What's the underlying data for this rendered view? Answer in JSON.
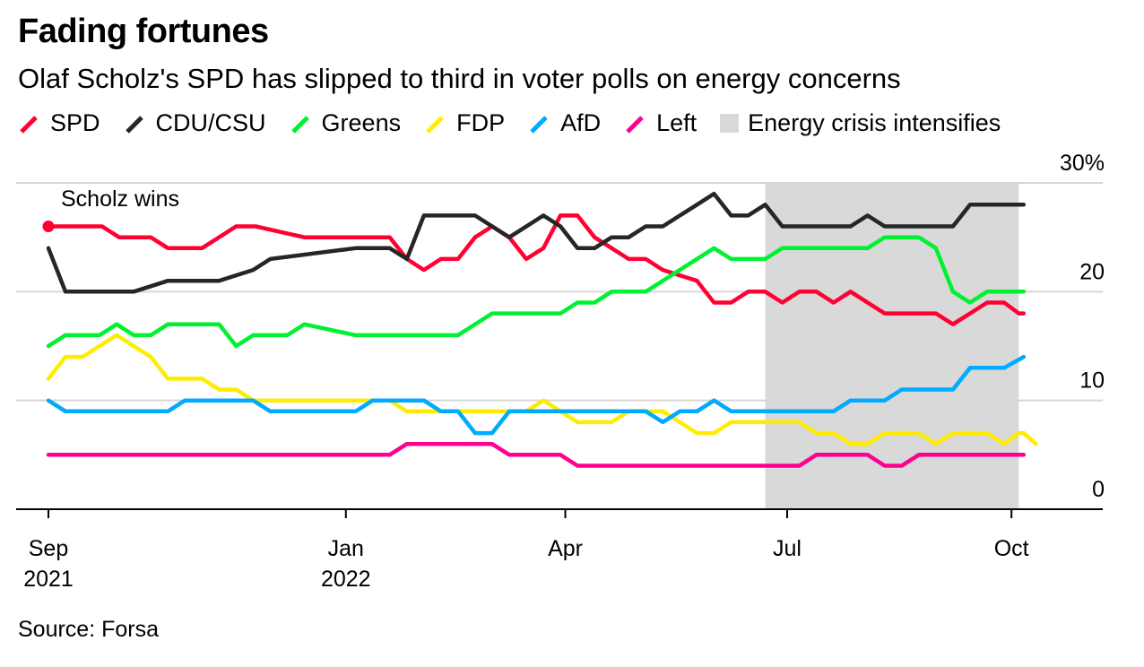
{
  "title": "Fading fortunes",
  "subtitle": "Olaf Scholz's SPD has slipped to third in voter polls on energy concerns",
  "source": "Source: Forsa",
  "chart_data": {
    "type": "line",
    "ylim": [
      0,
      30
    ],
    "y_ticks": [
      0,
      10,
      20,
      30
    ],
    "y_tick_labels": [
      "0",
      "10",
      "20",
      "30%"
    ],
    "x_range": [
      "2021-09-01",
      "2022-10-31"
    ],
    "x_ticks": [
      {
        "date": "2021-09-01",
        "label": "Sep",
        "sublabel": "2021"
      },
      {
        "date": "2022-01-01",
        "label": "Jan",
        "sublabel": "2022"
      },
      {
        "date": "2022-04-01",
        "label": "Apr",
        "sublabel": ""
      },
      {
        "date": "2022-07-01",
        "label": "Jul",
        "sublabel": ""
      },
      {
        "date": "2022-10-01",
        "label": "Oct",
        "sublabel": ""
      }
    ],
    "grid": true,
    "shaded_region": {
      "label": "Energy crisis intensifies",
      "start": "2022-06-22",
      "end": "2022-10-04",
      "color": "#d9d9d9"
    },
    "annotation": {
      "text": "Scholz wins",
      "date": "2021-09-01",
      "value": 26
    },
    "series": [
      {
        "name": "SPD",
        "color": "#ff0030",
        "points": [
          [
            "2021-09-01",
            26
          ],
          [
            "2021-09-15",
            26
          ],
          [
            "2021-09-23",
            26
          ],
          [
            "2021-09-30",
            25
          ],
          [
            "2021-10-13",
            25
          ],
          [
            "2021-10-20",
            24
          ],
          [
            "2021-11-03",
            24
          ],
          [
            "2021-11-17",
            26
          ],
          [
            "2021-11-25",
            26
          ],
          [
            "2021-12-15",
            25
          ],
          [
            "2022-01-19",
            25
          ],
          [
            "2022-01-26",
            23
          ],
          [
            "2022-02-02",
            22
          ],
          [
            "2022-02-09",
            23
          ],
          [
            "2022-02-16",
            23
          ],
          [
            "2022-02-23",
            25
          ],
          [
            "2022-03-02",
            26
          ],
          [
            "2022-03-09",
            25
          ],
          [
            "2022-03-16",
            23
          ],
          [
            "2022-03-23",
            24
          ],
          [
            "2022-03-30",
            27
          ],
          [
            "2022-04-06",
            27
          ],
          [
            "2022-04-13",
            25
          ],
          [
            "2022-04-20",
            24
          ],
          [
            "2022-04-27",
            23
          ],
          [
            "2022-05-04",
            23
          ],
          [
            "2022-05-11",
            22
          ],
          [
            "2022-05-25",
            21
          ],
          [
            "2022-06-01",
            19
          ],
          [
            "2022-06-08",
            19
          ],
          [
            "2022-06-15",
            20
          ],
          [
            "2022-06-22",
            20
          ],
          [
            "2022-06-29",
            19
          ],
          [
            "2022-07-06",
            20
          ],
          [
            "2022-07-13",
            20
          ],
          [
            "2022-07-20",
            19
          ],
          [
            "2022-07-27",
            20
          ],
          [
            "2022-08-03",
            19
          ],
          [
            "2022-08-10",
            18
          ],
          [
            "2022-08-31",
            18
          ],
          [
            "2022-09-07",
            17
          ],
          [
            "2022-09-14",
            18
          ],
          [
            "2022-09-21",
            19
          ],
          [
            "2022-09-28",
            19
          ],
          [
            "2022-10-04",
            18
          ],
          [
            "2022-10-06",
            18
          ]
        ]
      },
      {
        "name": "CDU/CSU",
        "color": "#262626",
        "points": [
          [
            "2021-09-01",
            24
          ],
          [
            "2021-09-08",
            20
          ],
          [
            "2021-09-15",
            20
          ],
          [
            "2021-10-06",
            20
          ],
          [
            "2021-10-20",
            21
          ],
          [
            "2021-11-10",
            21
          ],
          [
            "2021-11-24",
            22
          ],
          [
            "2021-12-01",
            23
          ],
          [
            "2022-01-05",
            24
          ],
          [
            "2022-01-19",
            24
          ],
          [
            "2022-01-26",
            23
          ],
          [
            "2022-02-02",
            27
          ],
          [
            "2022-02-23",
            27
          ],
          [
            "2022-03-02",
            26
          ],
          [
            "2022-03-09",
            25
          ],
          [
            "2022-03-23",
            27
          ],
          [
            "2022-03-30",
            26
          ],
          [
            "2022-04-06",
            24
          ],
          [
            "2022-04-13",
            24
          ],
          [
            "2022-04-20",
            25
          ],
          [
            "2022-04-27",
            25
          ],
          [
            "2022-05-04",
            26
          ],
          [
            "2022-05-11",
            26
          ],
          [
            "2022-05-18",
            27
          ],
          [
            "2022-05-25",
            28
          ],
          [
            "2022-06-01",
            29
          ],
          [
            "2022-06-08",
            27
          ],
          [
            "2022-06-15",
            27
          ],
          [
            "2022-06-22",
            28
          ],
          [
            "2022-06-29",
            26
          ],
          [
            "2022-07-06",
            26
          ],
          [
            "2022-07-27",
            26
          ],
          [
            "2022-08-03",
            27
          ],
          [
            "2022-08-10",
            26
          ],
          [
            "2022-08-31",
            26
          ],
          [
            "2022-09-07",
            26
          ],
          [
            "2022-09-14",
            28
          ],
          [
            "2022-10-06",
            28
          ]
        ]
      },
      {
        "name": "Greens",
        "color": "#00f032",
        "points": [
          [
            "2021-09-01",
            15
          ],
          [
            "2021-09-08",
            16
          ],
          [
            "2021-09-22",
            16
          ],
          [
            "2021-09-29",
            17
          ],
          [
            "2021-10-06",
            16
          ],
          [
            "2021-10-13",
            16
          ],
          [
            "2021-10-20",
            17
          ],
          [
            "2021-11-10",
            17
          ],
          [
            "2021-11-17",
            15
          ],
          [
            "2021-11-24",
            16
          ],
          [
            "2021-12-08",
            16
          ],
          [
            "2021-12-15",
            17
          ],
          [
            "2022-01-05",
            16
          ],
          [
            "2022-01-19",
            16
          ],
          [
            "2022-02-02",
            16
          ],
          [
            "2022-02-16",
            16
          ],
          [
            "2022-03-02",
            18
          ],
          [
            "2022-03-30",
            18
          ],
          [
            "2022-04-06",
            19
          ],
          [
            "2022-04-13",
            19
          ],
          [
            "2022-04-20",
            20
          ],
          [
            "2022-05-04",
            20
          ],
          [
            "2022-05-11",
            21
          ],
          [
            "2022-06-01",
            24
          ],
          [
            "2022-06-08",
            23
          ],
          [
            "2022-06-22",
            23
          ],
          [
            "2022-06-29",
            24
          ],
          [
            "2022-08-03",
            24
          ],
          [
            "2022-08-10",
            25
          ],
          [
            "2022-08-24",
            25
          ],
          [
            "2022-08-31",
            24
          ],
          [
            "2022-09-07",
            20
          ],
          [
            "2022-09-14",
            19
          ],
          [
            "2022-09-21",
            20
          ],
          [
            "2022-10-06",
            20
          ]
        ]
      },
      {
        "name": "FDP",
        "color": "#ffec00",
        "points": [
          [
            "2021-09-01",
            12
          ],
          [
            "2021-09-08",
            14
          ],
          [
            "2021-09-15",
            14
          ],
          [
            "2021-09-22",
            15
          ],
          [
            "2021-09-29",
            16
          ],
          [
            "2021-10-06",
            15
          ],
          [
            "2021-10-13",
            14
          ],
          [
            "2021-10-20",
            12
          ],
          [
            "2021-11-03",
            12
          ],
          [
            "2021-11-10",
            11
          ],
          [
            "2021-11-17",
            11
          ],
          [
            "2021-11-24",
            10
          ],
          [
            "2022-01-12",
            10
          ],
          [
            "2022-01-19",
            10
          ],
          [
            "2022-01-26",
            9
          ],
          [
            "2022-02-02",
            9
          ],
          [
            "2022-03-02",
            9
          ],
          [
            "2022-03-09",
            9
          ],
          [
            "2022-03-16",
            9
          ],
          [
            "2022-03-23",
            10
          ],
          [
            "2022-03-30",
            9
          ],
          [
            "2022-04-06",
            8
          ],
          [
            "2022-04-20",
            8
          ],
          [
            "2022-04-27",
            9
          ],
          [
            "2022-05-04",
            9
          ],
          [
            "2022-05-11",
            9
          ],
          [
            "2022-05-18",
            8
          ],
          [
            "2022-05-25",
            7
          ],
          [
            "2022-06-01",
            7
          ],
          [
            "2022-06-08",
            8
          ],
          [
            "2022-06-15",
            8
          ],
          [
            "2022-06-29",
            8
          ],
          [
            "2022-07-06",
            8
          ],
          [
            "2022-07-13",
            7
          ],
          [
            "2022-07-20",
            7
          ],
          [
            "2022-07-27",
            6
          ],
          [
            "2022-08-03",
            6
          ],
          [
            "2022-08-10",
            7
          ],
          [
            "2022-08-24",
            7
          ],
          [
            "2022-08-31",
            6
          ],
          [
            "2022-09-07",
            7
          ],
          [
            "2022-09-14",
            7
          ],
          [
            "2022-09-21",
            7
          ],
          [
            "2022-09-28",
            6
          ],
          [
            "2022-10-04",
            7
          ],
          [
            "2022-10-06",
            7
          ],
          [
            "2022-10-11",
            6
          ]
        ]
      },
      {
        "name": "AfD",
        "color": "#00aaff",
        "points": [
          [
            "2021-09-01",
            10
          ],
          [
            "2021-09-08",
            9
          ],
          [
            "2021-10-20",
            9
          ],
          [
            "2021-10-27",
            10
          ],
          [
            "2021-11-24",
            10
          ],
          [
            "2021-12-01",
            9
          ],
          [
            "2021-12-22",
            9
          ],
          [
            "2022-01-05",
            9
          ],
          [
            "2022-01-12",
            10
          ],
          [
            "2022-01-19",
            10
          ],
          [
            "2022-02-02",
            10
          ],
          [
            "2022-02-09",
            9
          ],
          [
            "2022-02-16",
            9
          ],
          [
            "2022-02-23",
            7
          ],
          [
            "2022-03-02",
            7
          ],
          [
            "2022-03-09",
            9
          ],
          [
            "2022-05-04",
            9
          ],
          [
            "2022-05-11",
            8
          ],
          [
            "2022-05-18",
            9
          ],
          [
            "2022-05-25",
            9
          ],
          [
            "2022-06-01",
            10
          ],
          [
            "2022-06-08",
            9
          ],
          [
            "2022-07-20",
            9
          ],
          [
            "2022-07-27",
            10
          ],
          [
            "2022-08-03",
            10
          ],
          [
            "2022-08-10",
            10
          ],
          [
            "2022-08-17",
            11
          ],
          [
            "2022-08-31",
            11
          ],
          [
            "2022-09-07",
            11
          ],
          [
            "2022-09-14",
            13
          ],
          [
            "2022-09-28",
            13
          ],
          [
            "2022-10-06",
            14
          ]
        ]
      },
      {
        "name": "Left",
        "color": "#ff0090",
        "points": [
          [
            "2021-09-01",
            5
          ],
          [
            "2022-01-19",
            5
          ],
          [
            "2022-01-26",
            6
          ],
          [
            "2022-03-02",
            6
          ],
          [
            "2022-03-09",
            5
          ],
          [
            "2022-03-23",
            5
          ],
          [
            "2022-03-30",
            5
          ],
          [
            "2022-04-06",
            4
          ],
          [
            "2022-07-06",
            4
          ],
          [
            "2022-07-13",
            5
          ],
          [
            "2022-08-03",
            5
          ],
          [
            "2022-08-10",
            4
          ],
          [
            "2022-08-17",
            4
          ],
          [
            "2022-08-24",
            5
          ],
          [
            "2022-10-06",
            5
          ]
        ]
      }
    ]
  }
}
